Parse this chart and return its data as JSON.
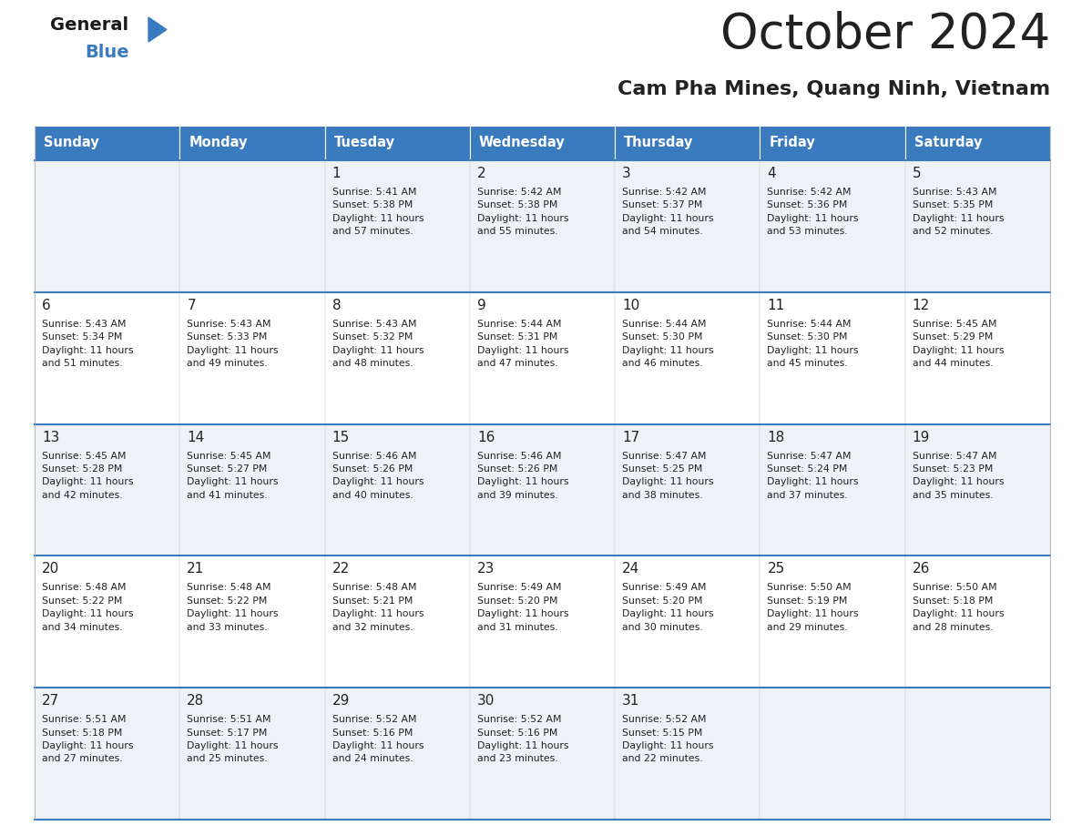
{
  "title": "October 2024",
  "subtitle": "Cam Pha Mines, Quang Ninh, Vietnam",
  "days_of_week": [
    "Sunday",
    "Monday",
    "Tuesday",
    "Wednesday",
    "Thursday",
    "Friday",
    "Saturday"
  ],
  "header_bg": "#3a7bbf",
  "header_text": "#ffffff",
  "row_bg_light": "#eef2f7",
  "row_bg_white": "#ffffff",
  "divider_color": "#3a7bbf",
  "text_color": "#222222",
  "cell_data": [
    [
      "",
      "",
      "1\nSunrise: 5:41 AM\nSunset: 5:38 PM\nDaylight: 11 hours\nand 57 minutes.",
      "2\nSunrise: 5:42 AM\nSunset: 5:38 PM\nDaylight: 11 hours\nand 55 minutes.",
      "3\nSunrise: 5:42 AM\nSunset: 5:37 PM\nDaylight: 11 hours\nand 54 minutes.",
      "4\nSunrise: 5:42 AM\nSunset: 5:36 PM\nDaylight: 11 hours\nand 53 minutes.",
      "5\nSunrise: 5:43 AM\nSunset: 5:35 PM\nDaylight: 11 hours\nand 52 minutes."
    ],
    [
      "6\nSunrise: 5:43 AM\nSunset: 5:34 PM\nDaylight: 11 hours\nand 51 minutes.",
      "7\nSunrise: 5:43 AM\nSunset: 5:33 PM\nDaylight: 11 hours\nand 49 minutes.",
      "8\nSunrise: 5:43 AM\nSunset: 5:32 PM\nDaylight: 11 hours\nand 48 minutes.",
      "9\nSunrise: 5:44 AM\nSunset: 5:31 PM\nDaylight: 11 hours\nand 47 minutes.",
      "10\nSunrise: 5:44 AM\nSunset: 5:30 PM\nDaylight: 11 hours\nand 46 minutes.",
      "11\nSunrise: 5:44 AM\nSunset: 5:30 PM\nDaylight: 11 hours\nand 45 minutes.",
      "12\nSunrise: 5:45 AM\nSunset: 5:29 PM\nDaylight: 11 hours\nand 44 minutes."
    ],
    [
      "13\nSunrise: 5:45 AM\nSunset: 5:28 PM\nDaylight: 11 hours\nand 42 minutes.",
      "14\nSunrise: 5:45 AM\nSunset: 5:27 PM\nDaylight: 11 hours\nand 41 minutes.",
      "15\nSunrise: 5:46 AM\nSunset: 5:26 PM\nDaylight: 11 hours\nand 40 minutes.",
      "16\nSunrise: 5:46 AM\nSunset: 5:26 PM\nDaylight: 11 hours\nand 39 minutes.",
      "17\nSunrise: 5:47 AM\nSunset: 5:25 PM\nDaylight: 11 hours\nand 38 minutes.",
      "18\nSunrise: 5:47 AM\nSunset: 5:24 PM\nDaylight: 11 hours\nand 37 minutes.",
      "19\nSunrise: 5:47 AM\nSunset: 5:23 PM\nDaylight: 11 hours\nand 35 minutes."
    ],
    [
      "20\nSunrise: 5:48 AM\nSunset: 5:22 PM\nDaylight: 11 hours\nand 34 minutes.",
      "21\nSunrise: 5:48 AM\nSunset: 5:22 PM\nDaylight: 11 hours\nand 33 minutes.",
      "22\nSunrise: 5:48 AM\nSunset: 5:21 PM\nDaylight: 11 hours\nand 32 minutes.",
      "23\nSunrise: 5:49 AM\nSunset: 5:20 PM\nDaylight: 11 hours\nand 31 minutes.",
      "24\nSunrise: 5:49 AM\nSunset: 5:20 PM\nDaylight: 11 hours\nand 30 minutes.",
      "25\nSunrise: 5:50 AM\nSunset: 5:19 PM\nDaylight: 11 hours\nand 29 minutes.",
      "26\nSunrise: 5:50 AM\nSunset: 5:18 PM\nDaylight: 11 hours\nand 28 minutes."
    ],
    [
      "27\nSunrise: 5:51 AM\nSunset: 5:18 PM\nDaylight: 11 hours\nand 27 minutes.",
      "28\nSunrise: 5:51 AM\nSunset: 5:17 PM\nDaylight: 11 hours\nand 25 minutes.",
      "29\nSunrise: 5:52 AM\nSunset: 5:16 PM\nDaylight: 11 hours\nand 24 minutes.",
      "30\nSunrise: 5:52 AM\nSunset: 5:16 PM\nDaylight: 11 hours\nand 23 minutes.",
      "31\nSunrise: 5:52 AM\nSunset: 5:15 PM\nDaylight: 11 hours\nand 22 minutes.",
      "",
      ""
    ]
  ],
  "logo_text_general": "General",
  "logo_text_blue": "Blue",
  "logo_color_general": "#1a1a1a",
  "logo_color_blue": "#3a7bbf",
  "logo_triangle_color": "#3a7bbf",
  "fig_width": 11.88,
  "fig_height": 9.18,
  "dpi": 100
}
